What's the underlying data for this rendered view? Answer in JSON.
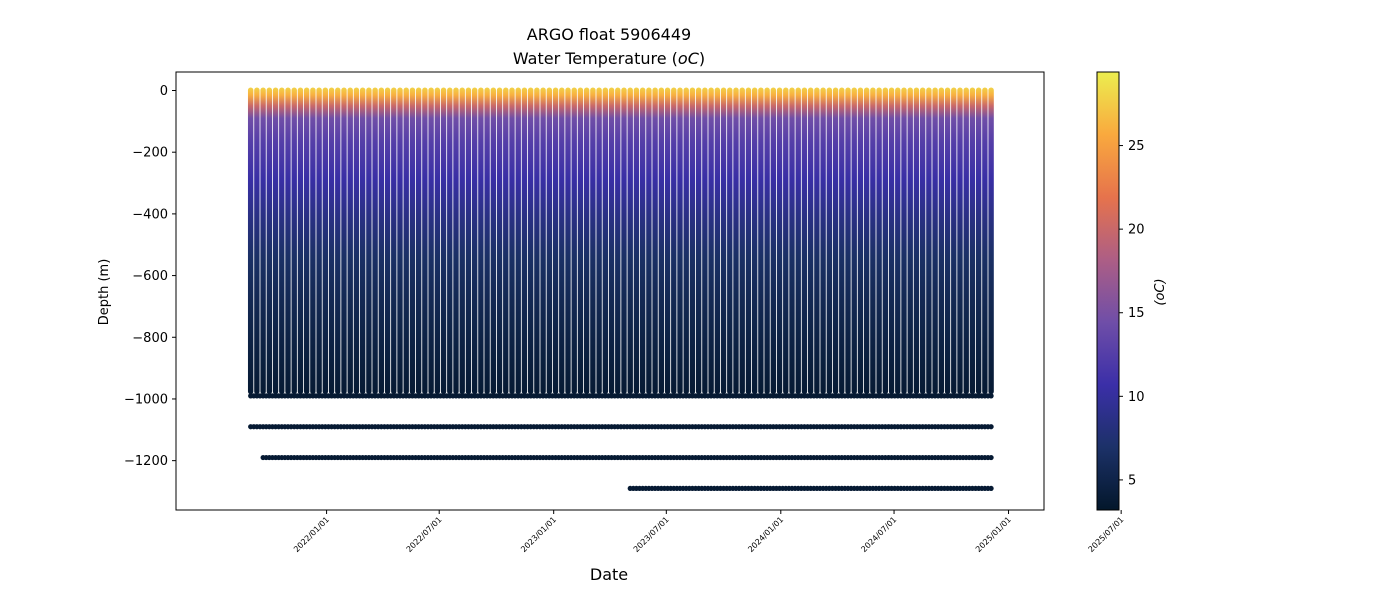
{
  "chart_data": {
    "type": "scatter",
    "title": "ARGO float 5906449",
    "subtitle": "Water Temperature (",
    "subtitle_unit_italic": "oC",
    "subtitle_close": ")",
    "xlabel": "Date",
    "ylabel": "Depth (m)",
    "colorbar_label": "(oC)",
    "x_tick_labels": [
      "2022/01/01",
      "2022/07/01",
      "2023/01/01",
      "2023/07/01",
      "2024/01/01",
      "2024/07/01",
      "2025/01/01",
      "2025/07/01"
    ],
    "y_ticks": [
      0,
      -200,
      -400,
      -600,
      -800,
      -1000,
      -1200
    ],
    "y_tick_labels": [
      "0",
      "−200",
      "−400",
      "−600",
      "−800",
      "−1000",
      "−1200"
    ],
    "ylim": [
      -1360,
      60
    ],
    "xlim_days": [
      -242,
      1153
    ],
    "colorbar_ticks": [
      5,
      10,
      15,
      20,
      25
    ],
    "colorbar_range": [
      3.2,
      29.4
    ],
    "colormap": [
      "#03172b",
      "#1c3168",
      "#3b2fa8",
      "#6f4ea8",
      "#ad5e85",
      "#e6734c",
      "#f9a93e",
      "#ecee4f"
    ],
    "profiles": {
      "first_day": -122,
      "interval_days": 10,
      "count": 120,
      "depth_max": -975,
      "surface_temp": 28,
      "deep_temp": 3.7,
      "extra_depths": [
        {
          "depth": -990,
          "from_day": -122
        },
        {
          "depth": -1090,
          "from_day": -122
        },
        {
          "depth": -1190,
          "from_day": -102
        },
        {
          "depth": -1290,
          "from_day": 488
        }
      ]
    }
  }
}
